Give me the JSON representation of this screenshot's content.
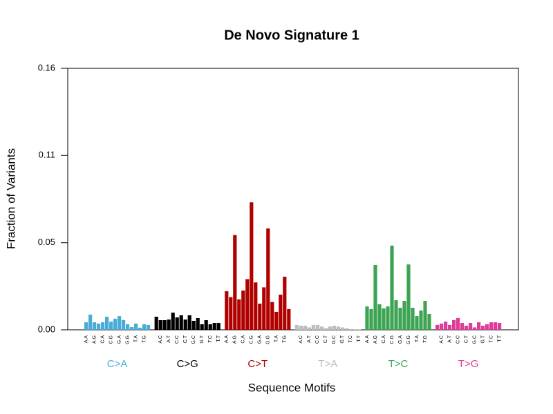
{
  "chart_data": {
    "type": "bar",
    "title": "De Novo Signature 1",
    "x_label": "Sequence Motifs",
    "y_label": "Fraction of Variants",
    "ylim": [
      0,
      0.16
    ],
    "yticks": [
      {
        "value": 0,
        "label": "0.00"
      },
      {
        "value": 0.0533,
        "label": "0.05"
      },
      {
        "value": 0.1067,
        "label": "0.11"
      },
      0.16
    ],
    "groups": [
      {
        "name": "C>A",
        "color": "#4aacd6",
        "categories": [
          "A.A",
          null,
          "A.G",
          null,
          "C.A",
          null,
          "C.G",
          null,
          "G.A",
          null,
          "G.G",
          null,
          "T.A",
          null,
          "T.G",
          null
        ],
        "values": [
          0.0046,
          0.0093,
          0.0046,
          0.0038,
          0.0046,
          0.008,
          0.005,
          0.0068,
          0.0084,
          0.006,
          0.0034,
          0.0017,
          0.0038,
          0.0013,
          0.0034,
          0.003
        ]
      },
      {
        "name": "C>G",
        "color": "#000000",
        "categories": [
          null,
          "A.C",
          null,
          "A.T",
          null,
          "C.C",
          null,
          "C.T",
          null,
          "G.C",
          null,
          "G.T",
          null,
          "T.C",
          null,
          "T.T"
        ],
        "values": [
          0.008,
          0.0059,
          0.0059,
          0.0063,
          0.0105,
          0.0076,
          0.0089,
          0.0063,
          0.0089,
          0.0055,
          0.0072,
          0.0034,
          0.0059,
          0.0034,
          0.0042,
          0.0042
        ]
      },
      {
        "name": "C>T",
        "color": "#b00000",
        "categories": [
          "A.A",
          null,
          "A.G",
          null,
          "C.A",
          null,
          "C.G",
          null,
          "G.A",
          null,
          "G.G",
          null,
          "T.A",
          null,
          "T.G",
          null
        ],
        "values": [
          0.0236,
          0.02,
          0.058,
          0.0186,
          0.024,
          0.031,
          0.078,
          0.029,
          0.016,
          0.026,
          0.062,
          0.017,
          0.011,
          0.0215,
          0.0325,
          0.0127
        ]
      },
      {
        "name": "T>A",
        "color": "#bdbdbd",
        "categories": [
          null,
          "A.C",
          null,
          "A.T",
          null,
          "C.C",
          null,
          "C.T",
          null,
          "G.C",
          null,
          "G.T",
          null,
          "T.C",
          null,
          "T.T"
        ],
        "values": [
          0.003,
          0.0025,
          0.0025,
          0.0015,
          0.003,
          0.003,
          0.002,
          0.001,
          0.002,
          0.0025,
          0.002,
          0.0015,
          0.001,
          0.0005,
          0.0003,
          0.0003
        ]
      },
      {
        "name": "T>C",
        "color": "#3da453",
        "categories": [
          "A.A",
          null,
          "A.G",
          null,
          "C.A",
          null,
          "C.G",
          null,
          "G.A",
          null,
          "G.G",
          null,
          "T.A",
          null,
          "T.G",
          null
        ],
        "values": [
          0.0143,
          0.0127,
          0.0397,
          0.0156,
          0.0131,
          0.0143,
          0.0515,
          0.0181,
          0.0135,
          0.0177,
          0.04,
          0.0135,
          0.0084,
          0.0118,
          0.0177,
          0.0097
        ]
      },
      {
        "name": "T>G",
        "color": "#de3c98",
        "categories": [
          null,
          "A.C",
          null,
          "A.T",
          null,
          "C.C",
          null,
          "C.T",
          null,
          "G.C",
          null,
          "G.T",
          null,
          "T.C",
          null,
          "T.T"
        ],
        "values": [
          0.003,
          0.0038,
          0.005,
          0.003,
          0.006,
          0.0072,
          0.0042,
          0.0025,
          0.0042,
          0.0015,
          0.0046,
          0.0025,
          0.0034,
          0.0046,
          0.0046,
          0.0042
        ]
      }
    ]
  }
}
